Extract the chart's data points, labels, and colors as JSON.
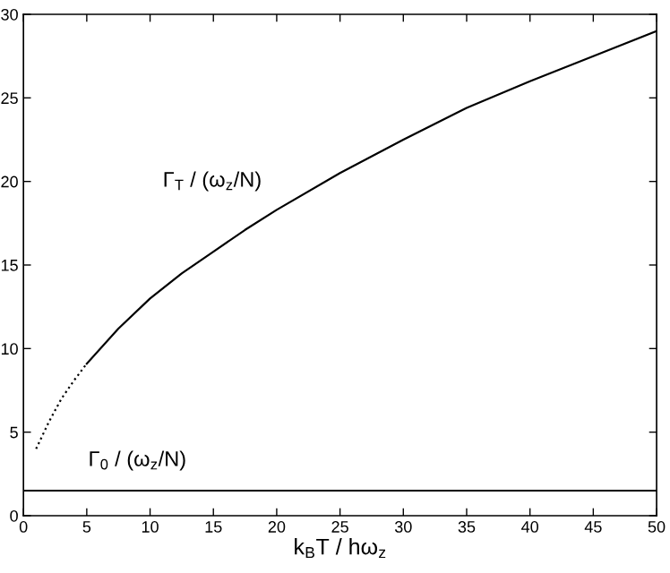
{
  "chart_data": {
    "type": "line",
    "xlabel": "k$_{B}$T / hω$_{z}$",
    "xlim": [
      0,
      50
    ],
    "ylim": [
      0,
      30
    ],
    "xticks": [
      0,
      5,
      10,
      15,
      20,
      25,
      30,
      35,
      40,
      45,
      50
    ],
    "yticks": [
      0,
      5,
      10,
      15,
      20,
      25,
      30
    ],
    "grid": false,
    "marker": "none",
    "series": [
      {
        "color": "#000000",
        "line_style": "dotted",
        "x": [
          1,
          2,
          3,
          4,
          5
        ],
        "values": [
          4,
          5.6,
          7,
          8.1,
          9.1
        ]
      },
      {
        "color": "#000000",
        "line_style": "solid",
        "x": [
          5,
          7.5,
          10,
          12.5,
          15,
          17.5,
          20,
          25,
          30,
          35,
          40,
          45,
          50
        ],
        "values": [
          9.1,
          11.2,
          13,
          14.5,
          15.8,
          17.1,
          18.3,
          20.5,
          22.5,
          24.4,
          26,
          27.5,
          29
        ]
      }
    ],
    "ref_lines": [
      {
        "axis": "y",
        "value": 1.5,
        "color": "#000000",
        "line_style": "solid",
        "label": "Γ$_{0}$ / (ω$_{z}$/N)"
      }
    ],
    "annotations": [
      "Γ$_{T}$ / (ω$_{z}$/N)"
    ]
  }
}
